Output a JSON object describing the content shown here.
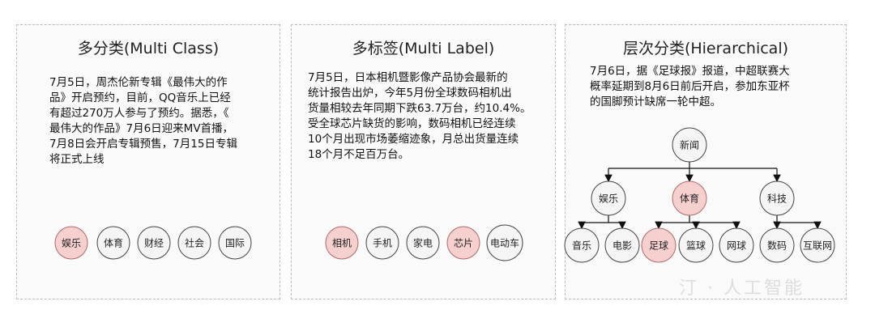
{
  "panels": [
    {
      "title": "多分类(Multi Class)",
      "lines": [
        "7月5日，周杰伦新专辑《最伟大的作",
        "品》开启预约，目前，QQ音乐上已经",
        "有超过270万人参与了预约。据悉，《",
        "最伟大的作品》7月6日迎来MV首播，",
        "7月8日会开启专辑预售，7月15日专辑",
        "将正式上线"
      ],
      "tags": [
        {
          "label": "娱乐",
          "selected": true
        },
        {
          "label": "体育",
          "selected": false
        },
        {
          "label": "财经",
          "selected": false
        },
        {
          "label": "社会",
          "selected": false
        },
        {
          "label": "国际",
          "selected": false
        }
      ]
    },
    {
      "title": "多标签(Multi Label)",
      "lines": [
        "7月5日，日本相机暨影像产品协会最新的",
        "统计报告出炉，今年5月份全球数码相机出",
        "货量相较去年同期下跌63.7万台，约10.4%。",
        "受全球芯片缺货的影响，数码相机已经连续",
        "10个月出现市场萎缩迹象，月总出货量连续",
        "18个月不足百万台。"
      ],
      "tags": [
        {
          "label": "相机",
          "selected": true
        },
        {
          "label": "手机",
          "selected": false
        },
        {
          "label": "家电",
          "selected": false
        },
        {
          "label": "芯片",
          "selected": true
        },
        {
          "label": "电动车",
          "selected": false
        }
      ]
    },
    {
      "title": "层次分类(Hierarchical)",
      "lines": [
        "7月6日，据《足球报》报道，中超联赛大",
        "概率延期到8月6日前后开启，参加东亚杯",
        "的国脚预计缺席一轮中超。"
      ],
      "tree": {
        "label": "新闻",
        "selected": false,
        "children": [
          {
            "label": "娱乐",
            "selected": false,
            "children": [
              {
                "label": "音乐",
                "selected": false
              },
              {
                "label": "电影",
                "selected": false
              }
            ]
          },
          {
            "label": "体育",
            "selected": true,
            "children": [
              {
                "label": "足球",
                "selected": true
              },
              {
                "label": "篮球",
                "selected": false
              },
              {
                "label": "网球",
                "selected": false
              }
            ]
          },
          {
            "label": "科技",
            "selected": false,
            "children": [
              {
                "label": "数码",
                "selected": false
              },
              {
                "label": "互联网",
                "selected": false
              }
            ]
          }
        ]
      }
    }
  ],
  "colors": {
    "selected_fill": "#f6cfcf",
    "selected_stroke": "#b06a6a",
    "node_fill": "#f5f5f5",
    "node_stroke": "#444"
  },
  "watermark": "汀 · 人工智能"
}
